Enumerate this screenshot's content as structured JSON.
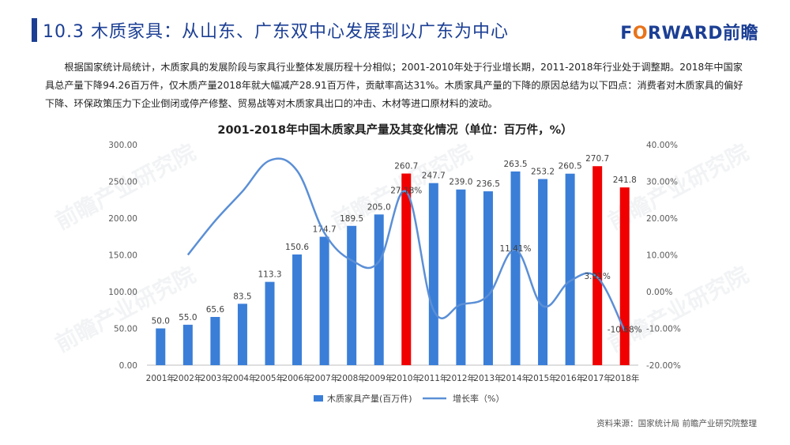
{
  "header": {
    "title": "10.3 木质家具：从山东、广东双中心发展到以广东为中心",
    "logo_main": "F",
    "logo_o": "O",
    "logo_rest": "RWARD",
    "logo_cn": "前瞻"
  },
  "intro_text": "根据国家统计局统计，木质家具的发展阶段与家具行业整体发展历程十分相似；2001-2010年处于行业增长期，2011-2018年行业处于调整期。2018年中国家具总产量下降94.26百万件，仅木质产量2018年就大幅减产28.91百万件，贡献率高达31%。木质家具产量的下降的原因总结为以下四点：消费者对木质家具的偏好下降、环保政策压力下企业倒闭或停产修整、贸易战等对木质家具出口的冲击、木材等进口原材料的波动。",
  "source_text": "资料来源：国家统计局  前瞻产业研究院整理",
  "watermark_text": "前瞻产业研究院",
  "chart_data": {
    "type": "bar",
    "title": "2001-2018年中国木质家具产量及其变化情况（单位：百万件，%）",
    "categories": [
      "2001年",
      "2002年",
      "2003年",
      "2004年",
      "2005年",
      "2006年",
      "2007年",
      "2008年",
      "2009年",
      "2010年",
      "2011年",
      "2012年",
      "2013年",
      "2014年",
      "2015年",
      "2016年",
      "2017年",
      "2018年"
    ],
    "series": [
      {
        "name": "木质家具产量(百万件)",
        "values": [
          50.0,
          55.0,
          65.6,
          83.5,
          113.3,
          150.6,
          174.7,
          189.5,
          205.0,
          260.7,
          247.7,
          239.0,
          236.5,
          263.5,
          253.2,
          260.5,
          270.7,
          241.8
        ],
        "labels": [
          "50.0",
          "55.0",
          "65.6",
          "83.5",
          "113.3",
          "150.6",
          "174.7",
          "189.5",
          "205.0",
          "260.7",
          "247.7",
          "239.0",
          "236.5",
          "263.5",
          "253.2",
          "260.5",
          "270.7",
          "241.8"
        ],
        "color": "#3a7ed8",
        "highlight_color": "#f00000",
        "highlight_categories": [
          "2010年",
          "2017年",
          "2018年"
        ]
      },
      {
        "name": "增长率（%）",
        "type": "line",
        "axis": "right",
        "values": [
          null,
          10.0,
          19.3,
          27.3,
          35.7,
          32.9,
          16.0,
          8.5,
          8.2,
          27.2,
          -5.0,
          -3.5,
          -1.0,
          11.41,
          -3.9,
          2.9,
          3.9,
          -10.68
        ],
        "labels": {
          "2010年": "27.18%",
          "2014年": "11.41%",
          "2017年": "3.91%",
          "2018年": "-10.68%"
        },
        "color": "#5b8fd6"
      }
    ],
    "ylim_left": [
      0,
      300
    ],
    "yticks_left": [
      "0.00",
      "50.00",
      "100.00",
      "150.00",
      "200.00",
      "250.00",
      "300.00"
    ],
    "ylim_right": [
      -20,
      40
    ],
    "yticks_right": [
      "-20.00%",
      "-10.00%",
      "0.00%",
      "10.00%",
      "20.00%",
      "30.00%",
      "40.00%"
    ],
    "legend_position": "bottom",
    "grid": false
  }
}
